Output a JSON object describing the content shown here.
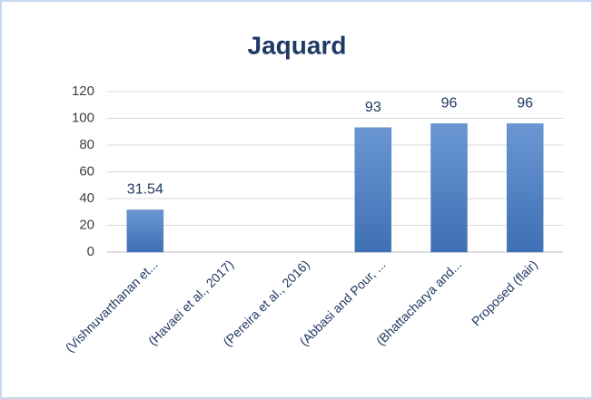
{
  "chart_data": {
    "type": "bar",
    "title": "Jaquard",
    "categories": [
      "(Vishnuvarthanan et...",
      "(Havaei et al., 2017)",
      "(Pereira et al., 2016)",
      "(Abbasi and Pour, ...",
      "(Bhattacharya and...",
      "Proposed (flair)"
    ],
    "values": [
      31.54,
      null,
      null,
      93,
      96,
      96
    ],
    "color": "#4f81bd",
    "ylim": [
      0,
      120
    ],
    "yticks": [
      0,
      20,
      40,
      60,
      80,
      100,
      120
    ],
    "grid": true
  }
}
